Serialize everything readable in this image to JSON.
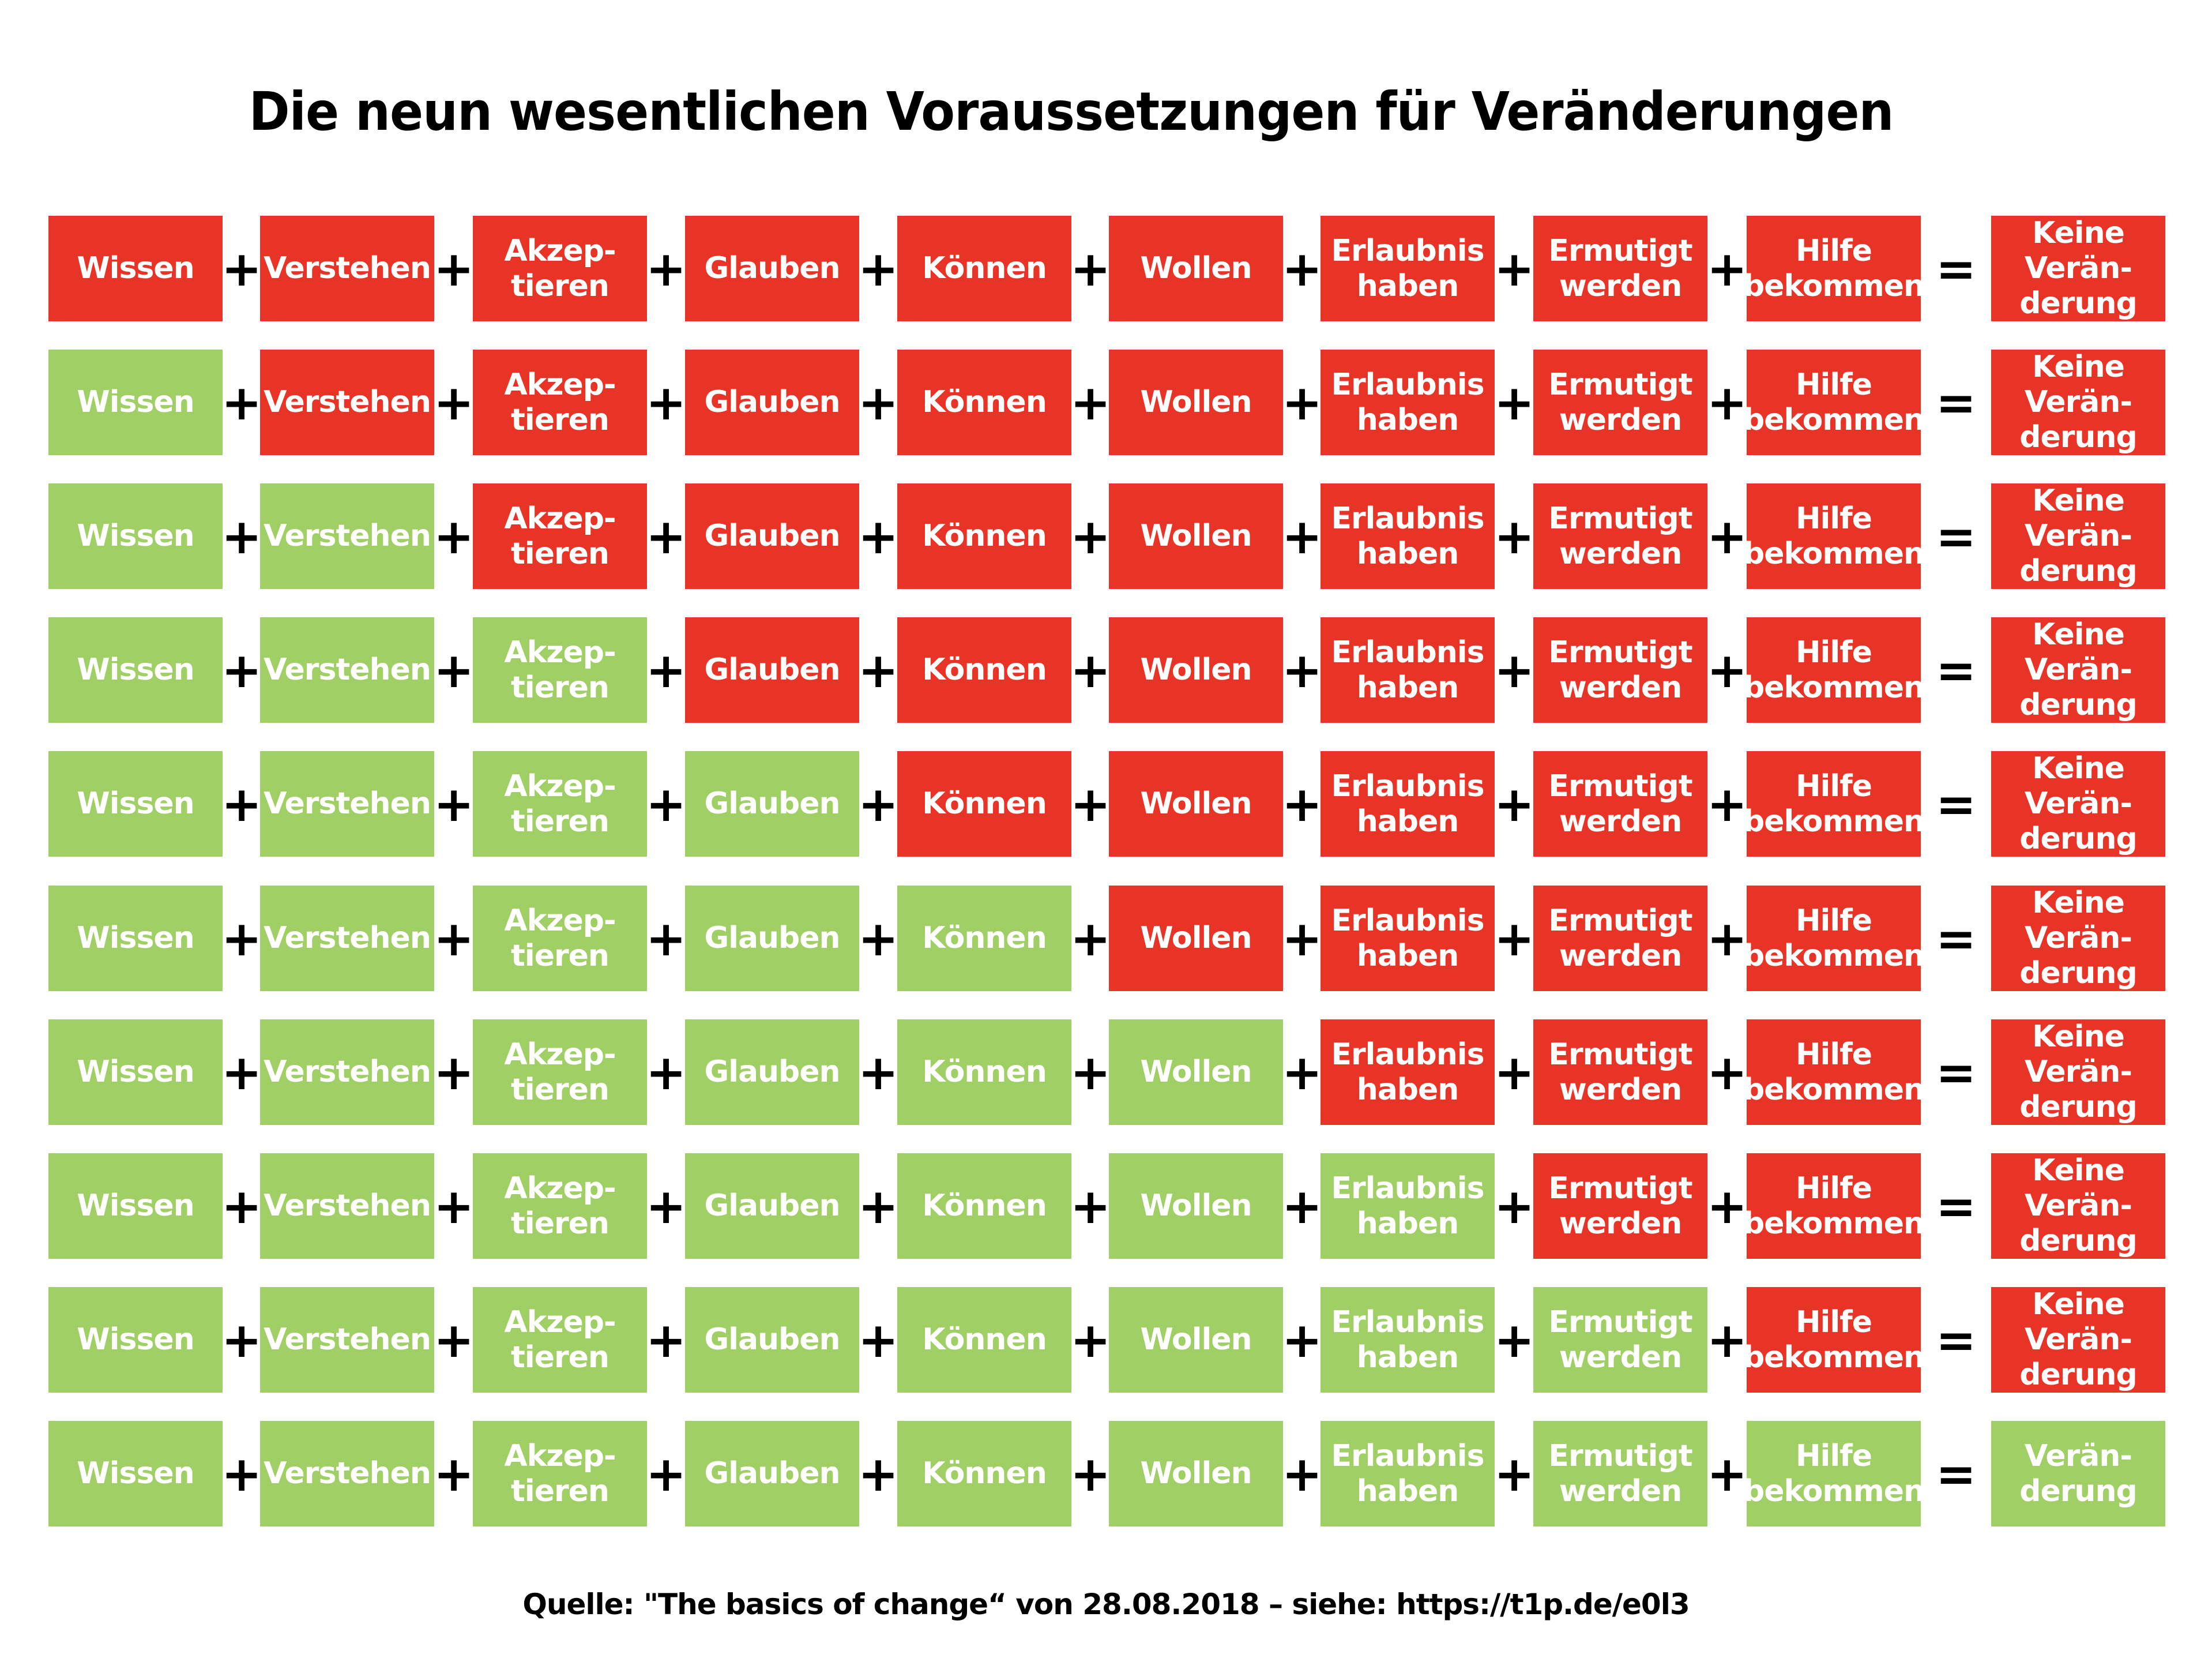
{
  "title": "Die neun wesentlichen Voraussetzungen für Veränderungen",
  "colors": {
    "missing": "#e73426",
    "present": "#a0cf65"
  },
  "prerequisites": [
    "Wissen",
    "Verstehen",
    "Akzep-\ntieren",
    "Glauben",
    "Können",
    "Wollen",
    "Erlaubnis\nhaben",
    "Ermutigt\nwerden",
    "Hilfe\nbekommen"
  ],
  "operators": {
    "plus": "+",
    "equals": "="
  },
  "results": {
    "no_change": "Keine\nVerän-\nderung",
    "change": "Verän-\nderung"
  },
  "rows": [
    {
      "fulfilled_count": 0,
      "result": "no_change"
    },
    {
      "fulfilled_count": 1,
      "result": "no_change"
    },
    {
      "fulfilled_count": 2,
      "result": "no_change"
    },
    {
      "fulfilled_count": 3,
      "result": "no_change"
    },
    {
      "fulfilled_count": 4,
      "result": "no_change"
    },
    {
      "fulfilled_count": 5,
      "result": "no_change"
    },
    {
      "fulfilled_count": 6,
      "result": "no_change"
    },
    {
      "fulfilled_count": 7,
      "result": "no_change"
    },
    {
      "fulfilled_count": 8,
      "result": "no_change"
    },
    {
      "fulfilled_count": 9,
      "result": "change"
    }
  ],
  "footer": "Quelle: \"The basics of change“ von 28.08.2018 – siehe: https://t1p.de/e0l3"
}
